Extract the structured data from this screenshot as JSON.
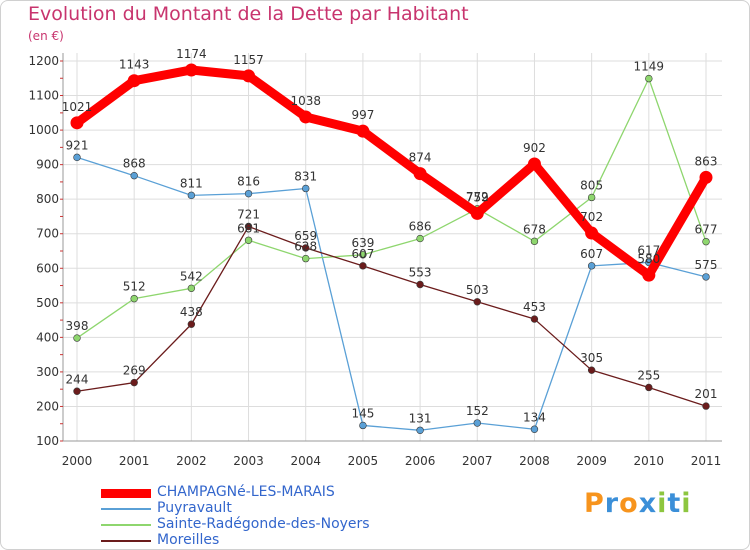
{
  "title": "Evolution du Montant de la Dette par Habitant",
  "unit": "(en €)",
  "logo": {
    "letters": [
      "P",
      "r",
      "o",
      "x",
      "i",
      "t",
      "i"
    ],
    "colors": [
      "#f7941d",
      "#3b8fd8",
      "#f7941d",
      "#3b8fd8",
      "#8dc63f",
      "#3b8fd8",
      "#8dc63f"
    ]
  },
  "chart_data": {
    "type": "line",
    "title": "Evolution du Montant de la Dette par Habitant",
    "ylabel": "(en €)",
    "xlabel": "",
    "x": [
      "2000",
      "2001",
      "2002",
      "2003",
      "2004",
      "2005",
      "2006",
      "2007",
      "2008",
      "2009",
      "2010",
      "2011"
    ],
    "ylim": [
      100,
      1200
    ],
    "yticks": [
      100,
      200,
      300,
      400,
      500,
      600,
      700,
      800,
      900,
      1000,
      1100,
      1200
    ],
    "grid": true,
    "legend": "bottom-left",
    "series": [
      {
        "name": "CHAMPAGNé-LES-MARAIS",
        "color": "#ff0000",
        "values": [
          1021,
          1143,
          1174,
          1157,
          1038,
          997,
          874,
          759,
          902,
          702,
          580,
          863
        ]
      },
      {
        "name": "Puyravault",
        "color": "#5aa0d6",
        "values": [
          921,
          868,
          811,
          816,
          831,
          145,
          131,
          152,
          134,
          607,
          617,
          575
        ]
      },
      {
        "name": "Sainte-Radégonde-des-Noyers",
        "color": "#8ed66e",
        "values": [
          398,
          512,
          542,
          681,
          628,
          639,
          686,
          772,
          678,
          805,
          1149,
          677
        ]
      },
      {
        "name": "Moreilles",
        "color": "#6b1c1c",
        "values": [
          244,
          269,
          438,
          721,
          659,
          607,
          553,
          503,
          453,
          305,
          255,
          201
        ]
      }
    ]
  }
}
